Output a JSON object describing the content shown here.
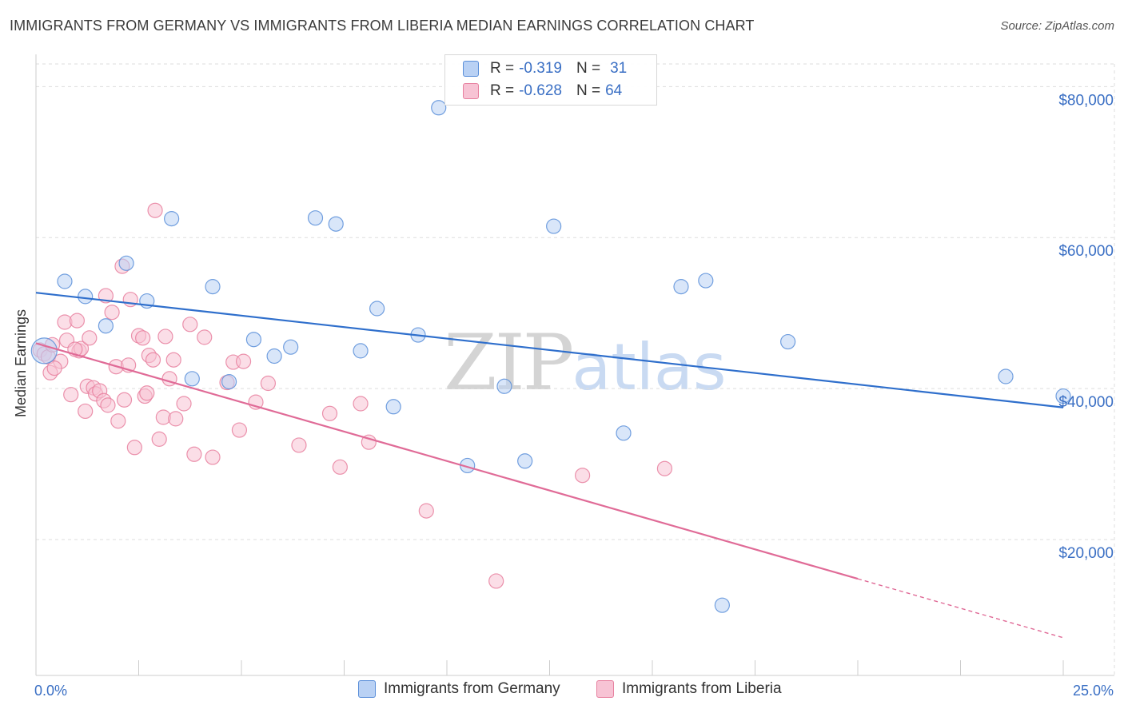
{
  "header": {
    "title": "IMMIGRANTS FROM GERMANY VS IMMIGRANTS FROM LIBERIA MEDIAN EARNINGS CORRELATION CHART",
    "source": "Source: ZipAtlas.com"
  },
  "watermark": {
    "zip": "ZIP",
    "atlas": "atlas"
  },
  "legend_top": {
    "germany": {
      "r_label": "R =",
      "r_value": "-0.319",
      "n_label": "N =",
      "n_value": "31"
    },
    "liberia": {
      "r_label": "R =",
      "r_value": "-0.628",
      "n_label": "N =",
      "n_value": "64"
    }
  },
  "colors": {
    "germany_fill": "#b9d1f4",
    "germany_stroke": "#5b8fd9",
    "germany_line": "#2f6fcc",
    "liberia_fill": "#f7c3d4",
    "liberia_stroke": "#e7809f",
    "liberia_line": "#e06b97",
    "grid": "#dddddd",
    "axis_text": "#3a6fc4"
  },
  "chart_data": {
    "type": "scatter",
    "title": "IMMIGRANTS FROM GERMANY VS IMMIGRANTS FROM LIBERIA MEDIAN EARNINGS CORRELATION CHART",
    "xlabel": "",
    "ylabel": "Median Earnings",
    "xlim": [
      0,
      25
    ],
    "ylim": [
      2000,
      83000
    ],
    "x_tick_labels": [
      "0.0%",
      "25.0%"
    ],
    "y_ticks": [
      20000,
      40000,
      60000,
      80000
    ],
    "y_tick_labels": [
      "$20,000",
      "$40,000",
      "$60,000",
      "$80,000"
    ],
    "grid": true,
    "legend_position": "top-center",
    "series": [
      {
        "name": "Immigrants from Germany",
        "r": -0.319,
        "n": 31,
        "trend": {
          "x": [
            0,
            25
          ],
          "y": [
            52700,
            37500
          ],
          "dashed_from": null
        },
        "points": [
          [
            0.2,
            45000,
            "big"
          ],
          [
            0.7,
            54200
          ],
          [
            1.2,
            52200
          ],
          [
            1.7,
            48300
          ],
          [
            2.2,
            56600
          ],
          [
            2.7,
            51600
          ],
          [
            3.3,
            62500
          ],
          [
            3.8,
            41300
          ],
          [
            4.3,
            53500
          ],
          [
            4.7,
            40900
          ],
          [
            5.3,
            46500
          ],
          [
            5.8,
            44300
          ],
          [
            6.2,
            45500
          ],
          [
            6.8,
            62600
          ],
          [
            7.3,
            61800
          ],
          [
            7.9,
            45000
          ],
          [
            8.3,
            50600
          ],
          [
            8.7,
            37600
          ],
          [
            9.3,
            47100
          ],
          [
            9.8,
            77200
          ],
          [
            10.5,
            29800
          ],
          [
            11.4,
            40300
          ],
          [
            11.9,
            30400
          ],
          [
            12.6,
            61500
          ],
          [
            14.3,
            34100
          ],
          [
            15.7,
            53500
          ],
          [
            16.3,
            54300
          ],
          [
            16.7,
            11300
          ],
          [
            18.3,
            46200
          ],
          [
            23.6,
            41600
          ],
          [
            25.0,
            39000
          ]
        ]
      },
      {
        "name": "Immigrants from Liberia",
        "r": -0.628,
        "n": 64,
        "trend": {
          "x": [
            0,
            25
          ],
          "y": [
            46000,
            7000
          ],
          "dashed_from": 20
        },
        "points": [
          [
            0.1,
            45100
          ],
          [
            0.2,
            44600
          ],
          [
            0.3,
            44200
          ],
          [
            0.4,
            45800
          ],
          [
            0.6,
            43600
          ],
          [
            0.35,
            42100
          ],
          [
            0.45,
            42700
          ],
          [
            0.7,
            48800
          ],
          [
            0.75,
            46400
          ],
          [
            0.85,
            39200
          ],
          [
            1.0,
            49000
          ],
          [
            1.05,
            45000
          ],
          [
            1.1,
            45300
          ],
          [
            1.2,
            37000
          ],
          [
            1.25,
            40300
          ],
          [
            1.3,
            46700
          ],
          [
            1.4,
            40100
          ],
          [
            1.45,
            39300
          ],
          [
            1.55,
            39700
          ],
          [
            1.65,
            38400
          ],
          [
            1.7,
            52300
          ],
          [
            1.75,
            37800
          ],
          [
            1.85,
            50100
          ],
          [
            1.95,
            42900
          ],
          [
            2.0,
            35700
          ],
          [
            2.1,
            56200
          ],
          [
            2.15,
            38500
          ],
          [
            2.25,
            43100
          ],
          [
            2.3,
            51800
          ],
          [
            2.4,
            32200
          ],
          [
            2.5,
            47000
          ],
          [
            2.6,
            46700
          ],
          [
            2.65,
            39000
          ],
          [
            2.7,
            39400
          ],
          [
            2.75,
            44400
          ],
          [
            2.85,
            43800
          ],
          [
            2.9,
            63600
          ],
          [
            3.0,
            33300
          ],
          [
            3.1,
            36200
          ],
          [
            3.15,
            46900
          ],
          [
            3.25,
            41300
          ],
          [
            3.35,
            43800
          ],
          [
            3.4,
            36000
          ],
          [
            3.6,
            38000
          ],
          [
            3.75,
            48500
          ],
          [
            3.85,
            31300
          ],
          [
            4.1,
            46800
          ],
          [
            4.3,
            30900
          ],
          [
            4.65,
            40800
          ],
          [
            4.8,
            43500
          ],
          [
            4.95,
            34500
          ],
          [
            5.05,
            43600
          ],
          [
            5.35,
            38200
          ],
          [
            5.65,
            40700
          ],
          [
            6.4,
            32500
          ],
          [
            7.15,
            36700
          ],
          [
            7.4,
            29600
          ],
          [
            7.9,
            38000
          ],
          [
            8.1,
            32900
          ],
          [
            9.5,
            23800
          ],
          [
            11.2,
            14500
          ],
          [
            13.3,
            28500
          ],
          [
            15.3,
            29400
          ],
          [
            0.95,
            45200
          ]
        ]
      }
    ]
  },
  "legend_bottom": {
    "germany_label": "Immigrants from Germany",
    "liberia_label": "Immigrants from Liberia"
  }
}
